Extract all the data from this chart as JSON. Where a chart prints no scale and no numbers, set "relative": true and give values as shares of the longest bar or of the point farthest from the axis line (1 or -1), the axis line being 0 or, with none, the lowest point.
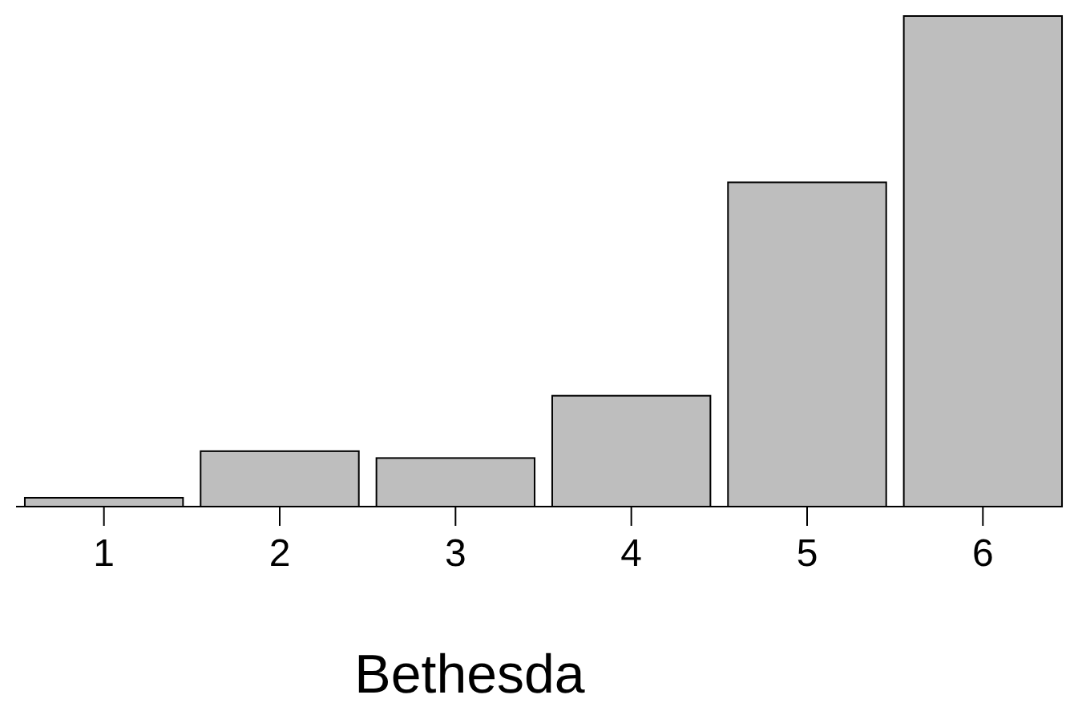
{
  "chart_data": {
    "type": "bar",
    "xlabel": "Bethesda",
    "categories": [
      "1",
      "2",
      "3",
      "4",
      "5",
      "6"
    ],
    "values": [
      0.018,
      0.113,
      0.099,
      0.226,
      0.661,
      1
    ],
    "color": "#bebebe",
    "relative": true
  }
}
